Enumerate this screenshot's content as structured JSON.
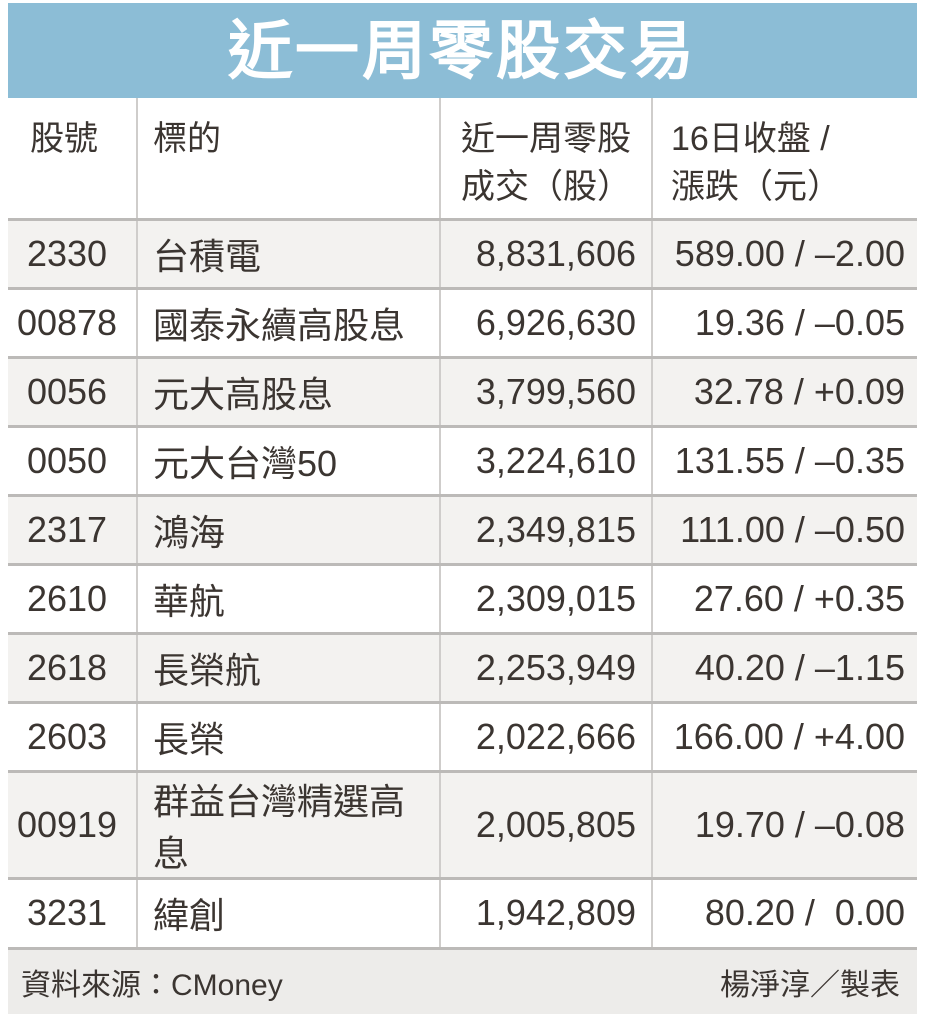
{
  "title": "近一周零股交易",
  "colors": {
    "header_bg": "#8cbdd6",
    "header_text": "#ffffff",
    "row_alt_bg": "#f3f2f0",
    "row_bg": "#ffffff",
    "footer_bg": "#edecea",
    "divider": "#bcbab8",
    "column_line": "#cfcdcb",
    "text": "#3b3531"
  },
  "table": {
    "columns": [
      "股號",
      "標的",
      "近一周零股\n成交（股）",
      "16日收盤 /\n漲跌（元）"
    ],
    "price_separator": " / ",
    "rows": [
      {
        "code": "2330",
        "name": "台積電",
        "volume": "8,831,606",
        "close": "589.00",
        "change": "–2.00"
      },
      {
        "code": "00878",
        "name": "國泰永續高股息",
        "volume": "6,926,630",
        "close": "19.36",
        "change": "–0.05"
      },
      {
        "code": "0056",
        "name": "元大高股息",
        "volume": "3,799,560",
        "close": "32.78",
        "change": "+0.09"
      },
      {
        "code": "0050",
        "name": "元大台灣50",
        "volume": "3,224,610",
        "close": "131.55",
        "change": "–0.35"
      },
      {
        "code": "2317",
        "name": "鴻海",
        "volume": "2,349,815",
        "close": "111.00",
        "change": "–0.50"
      },
      {
        "code": "2610",
        "name": "華航",
        "volume": "2,309,015",
        "close": "27.60",
        "change": "+0.35"
      },
      {
        "code": "2618",
        "name": "長榮航",
        "volume": "2,253,949",
        "close": "40.20",
        "change": "–1.15"
      },
      {
        "code": "2603",
        "name": "長榮",
        "volume": "2,022,666",
        "close": "166.00",
        "change": "+4.00"
      },
      {
        "code": "00919",
        "name": "群益台灣精選高息",
        "volume": "2,005,805",
        "close": "19.70",
        "change": "–0.08"
      },
      {
        "code": "3231",
        "name": "緯創",
        "volume": "1,942,809",
        "close": "80.20",
        "change": " 0.00"
      }
    ]
  },
  "footer": {
    "source": "資料來源：CMoney",
    "credit": "楊淨淳／製表"
  },
  "chart_data": {
    "type": "table",
    "title": "近一周零股交易",
    "columns": [
      "股號",
      "標的",
      "近一周零股成交（股）",
      "16日收盤（元）",
      "漲跌（元）"
    ],
    "rows": [
      [
        "2330",
        "台積電",
        8831606,
        589.0,
        -2.0
      ],
      [
        "00878",
        "國泰永續高股息",
        6926630,
        19.36,
        -0.05
      ],
      [
        "0056",
        "元大高股息",
        3799560,
        32.78,
        0.09
      ],
      [
        "0050",
        "元大台灣50",
        3224610,
        131.55,
        -0.35
      ],
      [
        "2317",
        "鴻海",
        2349815,
        111.0,
        -0.5
      ],
      [
        "2610",
        "華航",
        2309015,
        27.6,
        0.35
      ],
      [
        "2618",
        "長榮航",
        2253949,
        40.2,
        -1.15
      ],
      [
        "2603",
        "長榮",
        2022666,
        166.0,
        4.0
      ],
      [
        "00919",
        "群益台灣精選高息",
        2005805,
        19.7,
        -0.08
      ],
      [
        "3231",
        "緯創",
        1942809,
        80.2,
        0.0
      ]
    ],
    "source": "CMoney",
    "credit": "楊淨淳"
  }
}
